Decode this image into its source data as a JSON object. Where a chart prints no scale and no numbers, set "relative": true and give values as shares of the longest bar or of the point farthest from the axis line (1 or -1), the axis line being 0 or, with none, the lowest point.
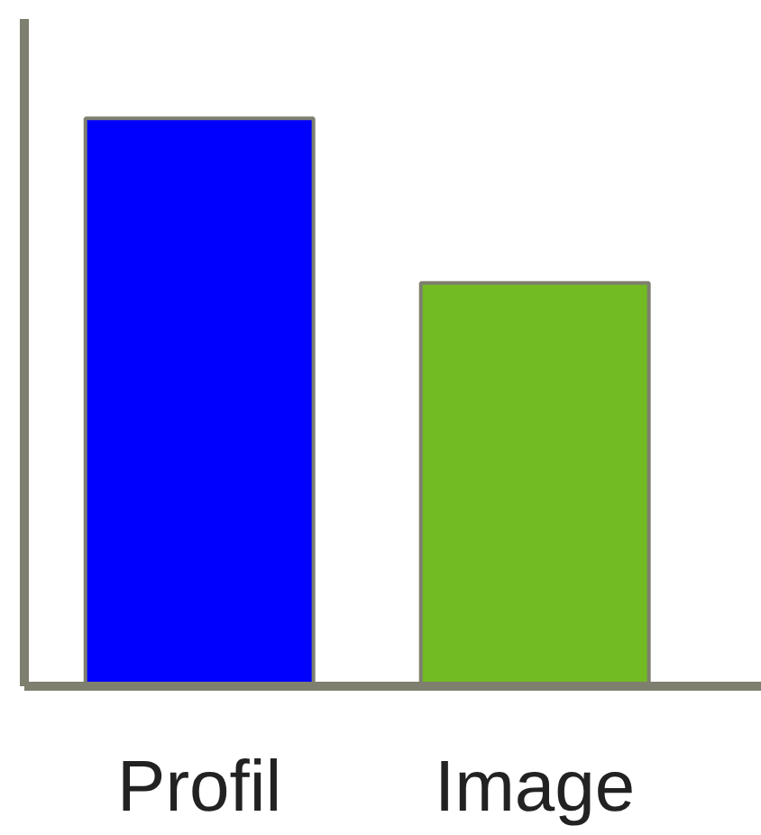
{
  "chart_data": {
    "type": "bar",
    "relative": true,
    "categories": [
      "Profil",
      "Image"
    ],
    "values": [
      1,
      0.71
    ],
    "colors": [
      "#0000ff",
      "#72bb22"
    ]
  }
}
